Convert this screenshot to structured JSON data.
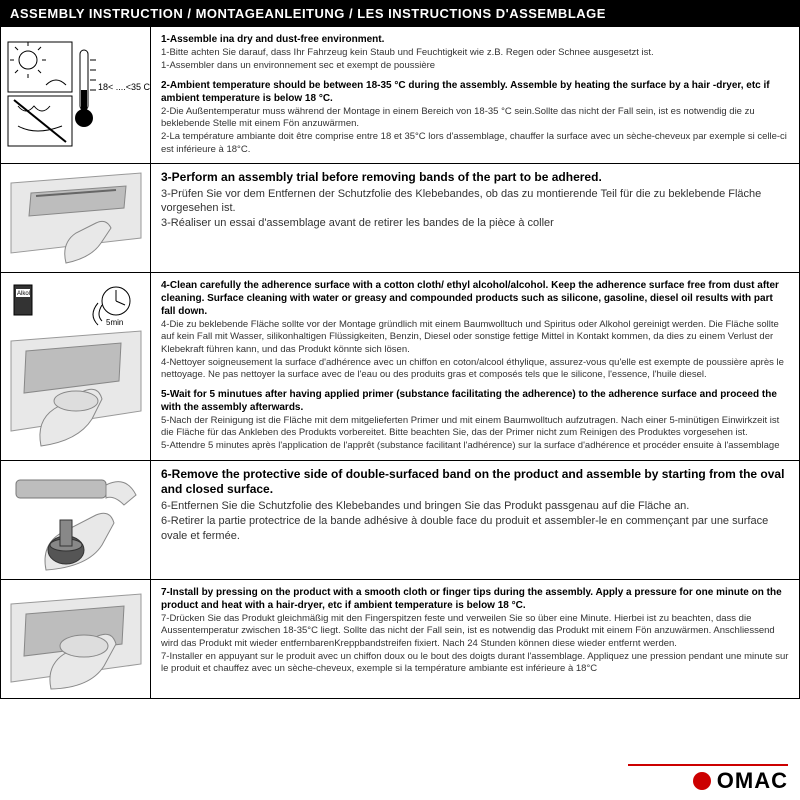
{
  "header": "ASSEMBLY INSTRUCTION / MONTAGEANLEITUNG / LES INSTRUCTIONS D'ASSEMBLAGE",
  "rows": [
    {
      "icon": "temp",
      "big": false,
      "steps": [
        {
          "bold": "1-Assemble ina dry and dust-free environment.",
          "lines": [
            "1-Bitte achten Sie darauf, dass Ihr Fahrzeug kein Staub und Feuchtigkeit wie z.B. Regen oder Schnee ausgesetzt ist.",
            "1-Assembler dans un environnement sec et exempt de poussière"
          ]
        },
        {
          "bold": "2-Ambient temperature should be between 18-35 °C  during the assembly. Assemble by heating the surface by a hair -dryer, etc if ambient temperature is below 18 °C.",
          "lines": [
            "2-Die Außentemperatur muss während der Montage in einem Bereich von 18-35 °C  sein.Sollte das nicht der Fall sein, ist es notwendig die zu beklebende Stelle mit einem Fön anzuwärmen.",
            "2-La température ambiante doit être comprise entre 18 et 35°C lors d'assemblage, chauffer la surface avec un sèche-cheveux par exemple si celle-ci est inférieure à 18°C."
          ]
        }
      ]
    },
    {
      "icon": "trial",
      "big": true,
      "steps": [
        {
          "bold": "3-Perform an assembly trial before removing bands of the part to be adhered.",
          "lines": [
            "3-Prüfen Sie vor dem Entfernen der Schutzfolie des Klebebandes, ob das zu montierende Teil für die zu beklebende Fläche vorgesehen ist.",
            "3-Réaliser un essai d'assemblage avant de retirer les bandes de la pièce à coller"
          ]
        }
      ]
    },
    {
      "icon": "clean",
      "big": false,
      "steps": [
        {
          "bold": "4-Clean carefully the adherence surface with a cotton cloth/ ethyl alcohol/alcohol. Keep the adherence surface free from dust after cleaning. Surface cleaning with water or greasy and compounded products such as silicone, gasoline, diesel oil results with part fall down.",
          "lines": [
            "4-Die zu beklebende Fläche sollte vor der Montage gründlich mit einem Baumwolltuch und Spiritus oder Alkohol gereinigt werden. Die Fläche sollte auf kein Fall mit Wasser, silikonhaltigen Flüssigkeiten, Benzin, Diesel oder sonstige fettige Mittel in Kontakt kommen, da dies zu einem Verlust der Klebekraft führen kann, und das Produkt könnte sich lösen.",
            "4-Nettoyer soigneusement la surface d'adhérence avec un chiffon en coton/alcool éthylique, assurez-vous qu'elle est exempte de poussière après le nettoyage. Ne pas nettoyer la surface avec de l'eau ou des produits gras et composés tels que le silicone, l'essence, l'huile diesel."
          ]
        },
        {
          "bold": "5-Wait for 5 minutues after having applied primer (substance facilitating the adherence) to the adherence surface and proceed the with the assembly afterwards.",
          "lines": [
            "5-Nach der Reinigung ist die Fläche mit dem mitgelieferten Primer und mit einem Baumwolltuch aufzutragen. Nach einer 5-minütigen Einwirkzeit ist die Fläche für das Ankleben des Produkts vorbereitet. Bitte beachten Sie, das der Primer nicht zum Reinigen des Produktes vorgesehen ist.",
            "5-Attendre 5 minutes après l'application de l'apprêt (substance facilitant l'adhérence) sur la surface d'adhérence et procéder ensuite à l'assemblage"
          ]
        }
      ]
    },
    {
      "icon": "peel",
      "big": true,
      "steps": [
        {
          "bold": "6-Remove the protective side of double-surfaced band on the product and assemble by starting from the oval and closed surface.",
          "lines": [
            "6-Entfernen Sie die Schutzfolie des Klebebandes und bringen Sie das Produkt passgenau auf die Fläche an.",
            "6-Retirer la partie protectrice de la bande adhésive à double face du produit et assembler-le en commençant par une surface ovale et fermée."
          ]
        }
      ]
    },
    {
      "icon": "press",
      "big": false,
      "steps": [
        {
          "bold": "7-Install by pressing on the product with a smooth cloth or finger tips during the assembly. Apply a pressure for one minute on the product and heat with a hair-dryer, etc if ambient temperature is below 18 °C.",
          "lines": [
            "7-Drücken Sie das Produkt gleichmäßig mit den Fingerspitzen feste und verweilen Sie so über eine Minute. Hierbei ist zu beachten, dass die Aussentemperatur zwischen 18-35°C liegt. Sollte das nicht der Fall sein, ist es notwendig das Produkt mit einem Fön anzuwärmen. Anschliessend wird das Produkt mit wieder entfernbarenKreppbandstreifen fixiert. Nach 24 Stunden können diese wieder entfernt werden.",
            "7-Installer en appuyant sur le produit avec un chiffon doux ou le bout des doigts durant l'assemblage. Appliquez une pression pendant une minute sur le produit et chauffez avec un sèche-cheveux, exemple si la température ambiante est inférieure à 18°C"
          ]
        }
      ]
    }
  ],
  "logo": "OMAC",
  "colors": {
    "header_bg": "#000000",
    "header_text": "#ffffff",
    "border": "#000000",
    "accent": "#c00000",
    "icon_light": "#e8e8e8",
    "icon_mid": "#bdbdbd",
    "icon_dark": "#555555"
  },
  "temp_label": "18< ....<35 C",
  "alcohol_label": "Alkol",
  "timer_label": "5min"
}
